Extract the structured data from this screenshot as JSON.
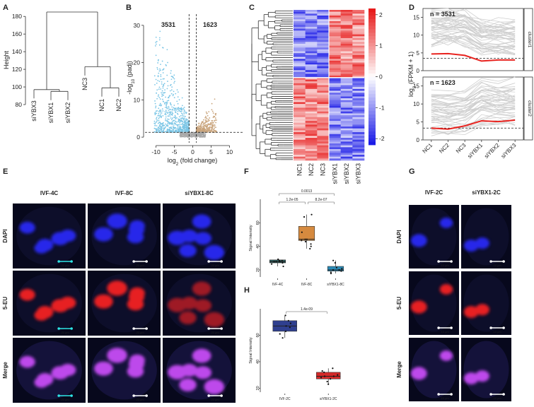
{
  "panel_labels": [
    "A",
    "B",
    "C",
    "D",
    "E",
    "F",
    "G",
    "H"
  ],
  "chart_data": [
    {
      "type": "dendrogram",
      "ylabel": "Height",
      "leaves": [
        "siYBX3",
        "siYBX1",
        "siYBX2",
        "NC3",
        "NC1",
        "NC2"
      ],
      "linkage": [
        [
          1,
          2,
          95
        ],
        [
          0,
          6,
          97
        ],
        [
          4,
          5,
          99
        ],
        [
          3,
          8,
          123
        ],
        [
          7,
          9,
          185
        ]
      ],
      "ylim": [
        76,
        189
      ],
      "yticks": [
        80,
        100,
        120,
        140,
        160,
        180
      ]
    },
    {
      "type": "volcano",
      "xlabel": [
        "log",
        "2",
        " (fold change)"
      ],
      "ylabel": [
        "-log",
        "10",
        " (padj)"
      ],
      "xlim": [
        -13,
        13
      ],
      "ylim": [
        -1.5,
        33
      ],
      "xticks": [
        -10,
        -5,
        0,
        5,
        10
      ],
      "yticks": [
        0,
        10,
        20,
        30
      ],
      "annotations": [
        "3531",
        "1623"
      ],
      "padj_line": 1.3,
      "fc_lines": [
        -1,
        1
      ],
      "colors": {
        "down": "#7cc6e6",
        "up": "#c9a47c",
        "ns": "#a9a9a9"
      }
    },
    {
      "type": "heatmap",
      "columns": [
        "NC1",
        "NC2",
        "NC3",
        "siYBX1",
        "siYBX2",
        "siYBX3"
      ],
      "colorbar_lim": [
        -2.2,
        2.2
      ],
      "colorbar_ticks": [
        -2,
        -1,
        0,
        1,
        2
      ],
      "colors": {
        "low": "#1515e6",
        "mid": "#ffffff",
        "high": "#e61515"
      }
    },
    {
      "type": "line",
      "ylabel": [
        "log",
        "2",
        " (FPKM + 1)"
      ],
      "categories": [
        "NC1",
        "NC2",
        "NC3",
        "siYBX1",
        "siYBX2",
        "siYBX3"
      ],
      "ylim": [
        0,
        17.5
      ],
      "yticks": [
        0,
        5,
        10,
        15
      ],
      "color": "#e8231f",
      "facets": [
        {
          "strip": "cluster1",
          "annotation": "n = 3531",
          "values": [
            4.7,
            4.8,
            4.3,
            2.7,
            3.0,
            3.0
          ],
          "hline": 3.5
        },
        {
          "strip": "cluster2",
          "annotation": "n = 1623",
          "values": [
            3.3,
            3.0,
            3.9,
            5.3,
            5.1,
            5.5
          ],
          "hline": 3.3
        }
      ]
    },
    {
      "type": "box",
      "ylabel": "Signal Intensity",
      "categories": [
        "IVF-4C",
        "IVF-8C",
        "siYBX1-8C"
      ],
      "ylim": [
        14,
        80
      ],
      "yticks": [
        20,
        40,
        60
      ],
      "boxes": [
        {
          "min": 23,
          "q1": 26,
          "median": 27,
          "q3": 28.5,
          "max": 29.5,
          "color": "#2c5b5b",
          "points": [
            27,
            28,
            26,
            29,
            25,
            27,
            28,
            23,
            27
          ]
        },
        {
          "min": 38,
          "q1": 45,
          "median": 46,
          "q3": 57,
          "max": 67,
          "color": "#d68a3f",
          "points": [
            67,
            65,
            52,
            46,
            45,
            46,
            44,
            42,
            38,
            40
          ]
        },
        {
          "min": 17,
          "q1": 19,
          "median": 20,
          "q3": 23,
          "max": 28,
          "color": "#2a8ab6",
          "points": [
            17,
            18,
            20,
            19,
            22,
            28,
            26,
            21,
            20
          ]
        }
      ],
      "comparisons": [
        {
          "pair": [
            0,
            2
          ],
          "label": "0.0013"
        },
        {
          "pair": [
            0,
            1
          ],
          "label": "1.2e-05"
        },
        {
          "pair": [
            1,
            2
          ],
          "label": "8.2e-07"
        }
      ]
    },
    {
      "type": "box",
      "ylabel": "Signal Intensity",
      "categories": [
        "IVF-2C",
        "siYBX1-2C"
      ],
      "ylim": [
        17,
        80
      ],
      "yticks": [
        20,
        40,
        60
      ],
      "boxes": [
        {
          "min": 58,
          "q1": 63,
          "median": 67,
          "q3": 71,
          "max": 75,
          "color": "#2f3f8f",
          "points": [
            75,
            71,
            69,
            67,
            66,
            63,
            61,
            58
          ]
        },
        {
          "min": 23,
          "q1": 27,
          "median": 29,
          "q3": 32,
          "max": 35,
          "color": "#d42a2a",
          "points": [
            35,
            33,
            32,
            30,
            29,
            29,
            28,
            27,
            25,
            23
          ]
        }
      ],
      "comparisons": [
        {
          "pair": [
            0,
            1
          ],
          "label": "1.4e-09"
        }
      ]
    }
  ],
  "images": [
    {
      "columns": [
        "IVF-4C",
        "IVF-8C",
        "siYBX1-8C"
      ],
      "rows": [
        "DAPI",
        "5-EU",
        "Merge"
      ],
      "scale": "20 μm"
    },
    {
      "columns": [
        "IVF-2C",
        "siYBX1-2C"
      ],
      "rows": [
        "DAPI",
        "5-EU",
        "Merge"
      ],
      "scale": "10 μm"
    }
  ]
}
